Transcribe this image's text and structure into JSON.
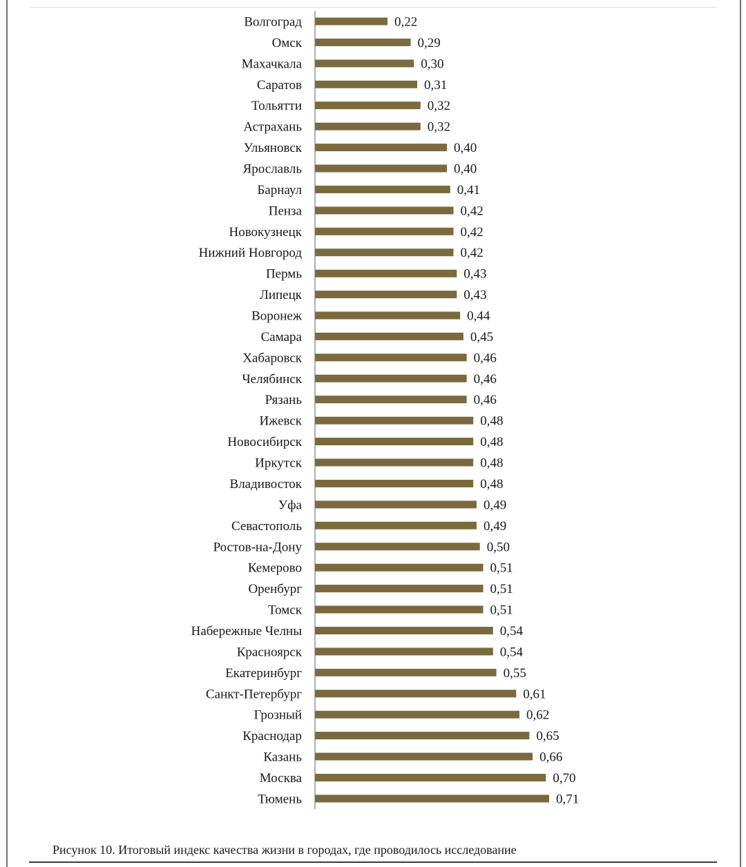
{
  "caption": "Рисунок 10. Итоговый индекс качества жизни в городах, где проводилось исследование",
  "colors": {
    "bar": "#7a6a3e",
    "axis": "#7a7a7a"
  },
  "chart_data": {
    "type": "bar",
    "orientation": "horizontal",
    "title": "",
    "xlabel": "",
    "ylabel": "",
    "xlim": [
      0,
      0.8
    ],
    "grid": false,
    "legend": "none",
    "categories": [
      "Волгоград",
      "Омск",
      "Махачкала",
      "Саратов",
      "Тольятти",
      "Астрахань",
      "Ульяновск",
      "Ярославль",
      "Барнаул",
      "Пенза",
      "Новокузнецк",
      "Нижний Новгород",
      "Пермь",
      "Липецк",
      "Воронеж",
      "Самара",
      "Хабаровск",
      "Челябинск",
      "Рязань",
      "Ижевск",
      "Новосибирск",
      "Иркутск",
      "Владивосток",
      "Уфа",
      "Севастополь",
      "Ростов-на-Дону",
      "Кемерово",
      "Оренбург",
      "Томск",
      "Набережные Челны",
      "Красноярск",
      "Екатеринбург",
      "Санкт-Петербург",
      "Грозный",
      "Краснодар",
      "Казань",
      "Москва",
      "Тюмень"
    ],
    "values": [
      0.22,
      0.29,
      0.3,
      0.31,
      0.32,
      0.32,
      0.4,
      0.4,
      0.41,
      0.42,
      0.42,
      0.42,
      0.43,
      0.43,
      0.44,
      0.45,
      0.46,
      0.46,
      0.46,
      0.48,
      0.48,
      0.48,
      0.48,
      0.49,
      0.49,
      0.5,
      0.51,
      0.51,
      0.51,
      0.54,
      0.54,
      0.55,
      0.61,
      0.62,
      0.65,
      0.66,
      0.7,
      0.71
    ],
    "value_labels": [
      "0,22",
      "0,29",
      "0,30",
      "0,31",
      "0,32",
      "0,32",
      "0,40",
      "0,40",
      "0,41",
      "0,42",
      "0,42",
      "0,42",
      "0,43",
      "0,43",
      "0,44",
      "0,45",
      "0,46",
      "0,46",
      "0,46",
      "0,48",
      "0,48",
      "0,48",
      "0,48",
      "0,49",
      "0,49",
      "0,50",
      "0,51",
      "0,51",
      "0,51",
      "0,54",
      "0,54",
      "0,55",
      "0,61",
      "0,62",
      "0,65",
      "0,66",
      "0,70",
      "0,71"
    ]
  }
}
